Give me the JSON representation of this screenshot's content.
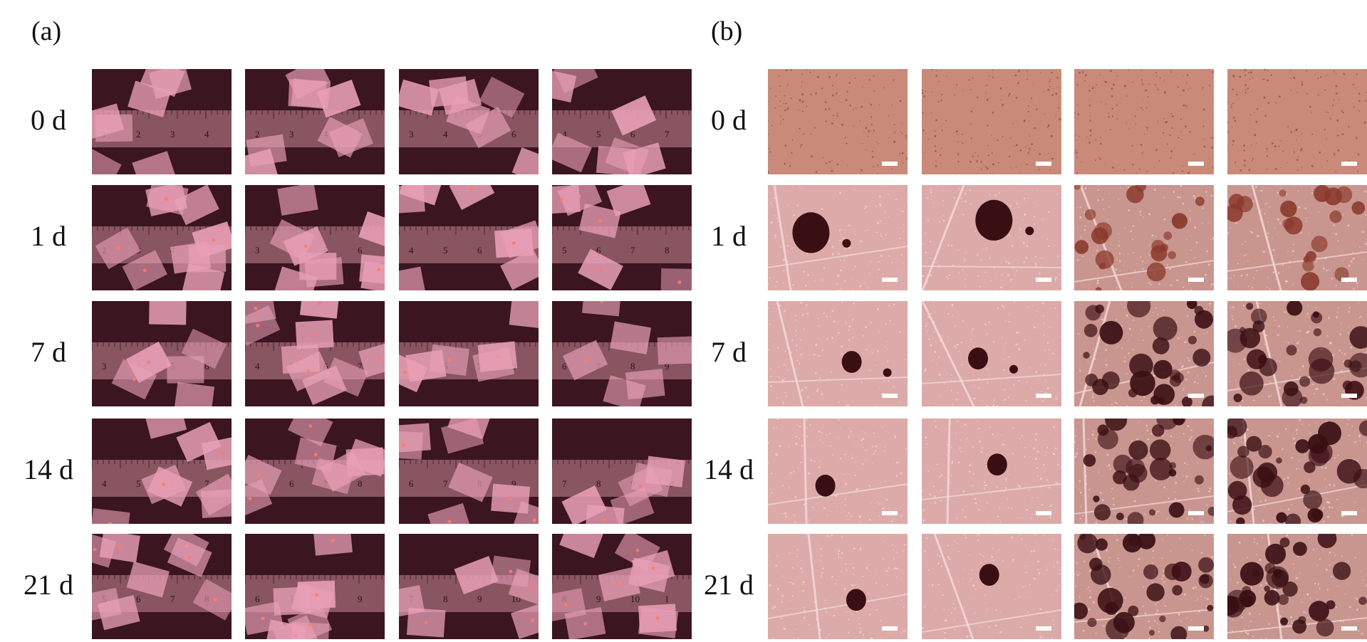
{
  "panels": [
    {
      "label": "(a)",
      "kind": "photo"
    },
    {
      "label": "(b)",
      "kind": "micrograph"
    }
  ],
  "timepoints": [
    "0 d",
    "1 d",
    "7 d",
    "14 d",
    "21 d"
  ],
  "columns_per_panel": 4,
  "panel_a": {
    "description_colors": {
      "background": "#3b1520",
      "sample": "#e9a0b6",
      "ruler": "#c98a98"
    },
    "ruler_digits": [
      "1",
      "2",
      "3",
      "4",
      "5",
      "6",
      "7",
      "8",
      "9",
      "10"
    ]
  },
  "panel_b": {
    "colors": {
      "base_early": "#c98a7a",
      "base_late": "#e2b7b5",
      "cell_cluster": "#3a0f14",
      "aggregate": "#8a3a2c"
    },
    "scalebar_color": "#ffffff"
  }
}
